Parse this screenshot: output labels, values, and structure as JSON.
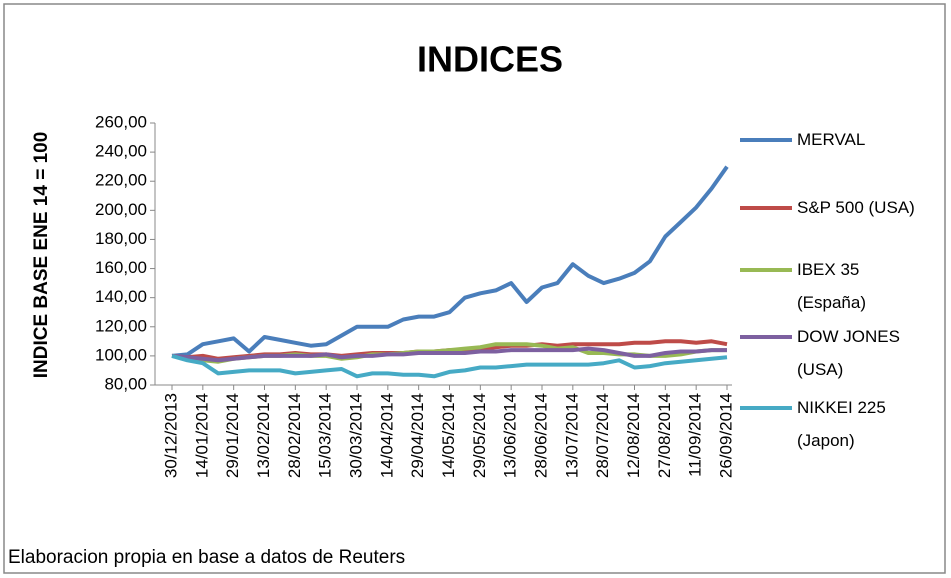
{
  "chart_data": {
    "type": "line",
    "title": "INDICES",
    "y_label": "INDICE BASE  ENE 14 = 100",
    "source": "Elaboracion propia en base a datos de Reuters",
    "categories": [
      "30/12/2013",
      null,
      "14/01/2014",
      null,
      "29/01/2014",
      null,
      "13/02/2014",
      null,
      "28/02/2014",
      null,
      "15/03/2014",
      null,
      "30/03/2014",
      null,
      "14/04/2014",
      null,
      "29/04/2014",
      null,
      "14/05/2014",
      null,
      "29/05/2014",
      null,
      "13/06/2014",
      null,
      "28/06/2014",
      null,
      "13/07/2014",
      null,
      "28/07/2014",
      null,
      "12/08/2014",
      null,
      "27/08/2014",
      null,
      "11/09/2014",
      null,
      "26/09/2014"
    ],
    "series": [
      {
        "name": "MERVAL",
        "color": "#4a7ebb",
        "values": [
          100,
          101,
          108,
          110,
          112,
          103,
          113,
          111,
          109,
          107,
          108,
          114,
          120,
          120,
          120,
          125,
          127,
          127,
          130,
          140,
          143,
          145,
          150,
          137,
          147,
          150,
          163,
          155,
          150,
          153,
          157,
          165,
          182,
          192,
          202,
          215,
          230
        ]
      },
      {
        "name": "S&P 500 (USA)",
        "color": "#be4b48",
        "values": [
          100,
          99,
          100,
          98,
          99,
          100,
          101,
          101,
          102,
          101,
          101,
          100,
          101,
          102,
          102,
          102,
          103,
          103,
          104,
          104,
          105,
          106,
          107,
          107,
          108,
          107,
          108,
          108,
          108,
          108,
          109,
          109,
          110,
          110,
          109,
          110,
          108
        ]
      },
      {
        "name": "IBEX 35 (España)",
        "color": "#98b954",
        "values": [
          100,
          98,
          97,
          96,
          98,
          99,
          100,
          100,
          101,
          100,
          100,
          98,
          99,
          101,
          101,
          102,
          103,
          103,
          104,
          105,
          106,
          108,
          108,
          108,
          107,
          105,
          106,
          102,
          102,
          101,
          101,
          100,
          100,
          101,
          103,
          104,
          104
        ]
      },
      {
        "name": "DOW JONES (USA)",
        "color": "#7d60a0",
        "values": [
          100,
          99,
          98,
          97,
          98,
          99,
          100,
          100,
          100,
          100,
          101,
          99,
          100,
          100,
          101,
          101,
          102,
          102,
          102,
          102,
          103,
          103,
          104,
          104,
          104,
          104,
          104,
          105,
          104,
          102,
          100,
          100,
          102,
          103,
          103,
          104,
          104
        ]
      },
      {
        "name": "NIKKEI 225 (Japon)",
        "color": "#46aac5",
        "values": [
          100,
          97,
          95,
          88,
          89,
          90,
          90,
          90,
          88,
          89,
          90,
          91,
          86,
          88,
          88,
          87,
          87,
          86,
          89,
          90,
          92,
          92,
          93,
          94,
          94,
          94,
          94,
          94,
          95,
          97,
          92,
          93,
          95,
          96,
          97,
          98,
          99
        ]
      }
    ],
    "ylim": [
      80,
      260
    ],
    "yticks": [
      {
        "value": 80,
        "label": "80,00"
      },
      {
        "value": 100,
        "label": "100,00"
      },
      {
        "value": 120,
        "label": "120,00"
      },
      {
        "value": 140,
        "label": "140,00"
      },
      {
        "value": 160,
        "label": "160,00"
      },
      {
        "value": 180,
        "label": "180,00"
      },
      {
        "value": 200,
        "label": "200,00"
      },
      {
        "value": 220,
        "label": "220,00"
      },
      {
        "value": 240,
        "label": "240,00"
      },
      {
        "value": 260,
        "label": "260,00"
      }
    ],
    "grid": false,
    "legend": "right"
  }
}
